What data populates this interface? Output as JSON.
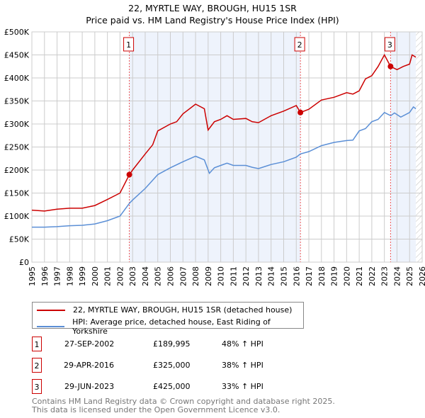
{
  "chart_data": {
    "type": "line",
    "title": "22, MYRTLE WAY, BROUGH, HU15 1SR",
    "subtitle": "Price paid vs. HM Land Registry's House Price Index (HPI)",
    "xlim": [
      1995,
      2026
    ],
    "ylim": [
      0,
      500000
    ],
    "y_ticks": [
      "£0",
      "£50K",
      "£100K",
      "£150K",
      "£200K",
      "£250K",
      "£300K",
      "£350K",
      "£400K",
      "£450K",
      "£500K"
    ],
    "x_ticks": [
      "1995",
      "1996",
      "1997",
      "1998",
      "1999",
      "2000",
      "2001",
      "2002",
      "2003",
      "2004",
      "2005",
      "2006",
      "2007",
      "2008",
      "2009",
      "2010",
      "2011",
      "2012",
      "2013",
      "2014",
      "2015",
      "2016",
      "2017",
      "2018",
      "2019",
      "2020",
      "2021",
      "2022",
      "2023",
      "2024",
      "2025",
      "2026"
    ],
    "series": [
      {
        "name": "22, MYRTLE WAY, BROUGH, HU15 1SR (detached house)",
        "color": "#cc0000",
        "x": [
          1995,
          1996,
          1997,
          1998,
          1999,
          2000,
          2001,
          2002,
          2002.74,
          2003,
          2004,
          2004.6,
          2005,
          2006,
          2006.5,
          2007,
          2008,
          2008.7,
          2009,
          2009.5,
          2010,
          2010.5,
          2011,
          2012,
          2012.5,
          2013,
          2014,
          2015,
          2016,
          2016.33,
          2017,
          2018,
          2019,
          2020,
          2020.5,
          2021,
          2021.5,
          2022,
          2022.5,
          2023,
          2023.49,
          2024,
          2024.5,
          2025,
          2025.2,
          2025.5
        ],
        "y": [
          113000,
          111000,
          115000,
          117000,
          117000,
          123000,
          136000,
          150000,
          189995,
          200000,
          235000,
          255000,
          285000,
          300000,
          305000,
          322000,
          343000,
          333000,
          287000,
          305000,
          310000,
          318000,
          310000,
          312000,
          305000,
          303000,
          318000,
          328000,
          340000,
          325000,
          332000,
          352000,
          358000,
          368000,
          365000,
          372000,
          398000,
          405000,
          425000,
          450000,
          425000,
          418000,
          425000,
          430000,
          450000,
          445000
        ]
      },
      {
        "name": "HPI: Average price, detached house, East Riding of Yorkshire",
        "color": "#5b8fd6",
        "x": [
          1995,
          1996,
          1997,
          1998,
          1999,
          2000,
          2001,
          2002,
          2002.75,
          2003,
          2004,
          2005,
          2006,
          2007,
          2008,
          2008.7,
          2009.1,
          2009.5,
          2010,
          2010.5,
          2011,
          2012,
          2012.5,
          2013,
          2014,
          2015,
          2016,
          2016.33,
          2017,
          2018,
          2019,
          2020,
          2020.5,
          2021,
          2021.5,
          2022,
          2022.5,
          2023,
          2023.5,
          2023.8,
          2024.3,
          2025,
          2025.3,
          2025.5
        ],
        "y": [
          76000,
          76000,
          77000,
          79000,
          80000,
          83000,
          90000,
          100000,
          128000,
          135000,
          160000,
          190000,
          205000,
          218000,
          230000,
          222000,
          193000,
          205000,
          210000,
          215000,
          210000,
          210000,
          206000,
          203000,
          212000,
          218000,
          228000,
          235000,
          240000,
          253000,
          260000,
          264000,
          265000,
          285000,
          290000,
          305000,
          310000,
          325000,
          318000,
          324000,
          315000,
          325000,
          337000,
          333000
        ]
      }
    ],
    "sales": [
      {
        "label": "1",
        "x": 2002.74,
        "price_value": 189995,
        "date": "27-SEP-2002",
        "price": "£189,995",
        "hpi": "48% ↑ HPI"
      },
      {
        "label": "2",
        "x": 2016.33,
        "price_value": 325000,
        "date": "29-APR-2016",
        "price": "£325,000",
        "hpi": "38% ↑ HPI"
      },
      {
        "label": "3",
        "x": 2023.49,
        "price_value": 425000,
        "date": "29-JUN-2023",
        "price": "£425,000",
        "hpi": "33% ↑ HPI"
      }
    ],
    "forecast_from": 2025.5,
    "legend_position": "below"
  },
  "footer": [
    "Contains HM Land Registry data © Crown copyright and database right 2025.",
    "This data is licensed under the Open Government Licence v3.0."
  ]
}
